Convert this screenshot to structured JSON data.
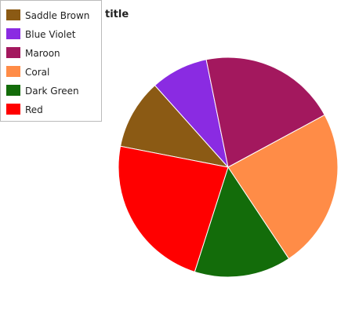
{
  "chart_data": {
    "type": "pie",
    "title": "title",
    "slices": [
      {
        "label": "Saddle Brown",
        "value": 9.9,
        "color": "#8B5A14"
      },
      {
        "label": "Blue Violet",
        "value": 8.1,
        "color": "#8A2BE2"
      },
      {
        "label": "Maroon",
        "value": 19.5,
        "color": "#A3185E"
      },
      {
        "label": "Coral",
        "value": 22.6,
        "color": "#FF8C47"
      },
      {
        "label": "Dark Green",
        "value": 13.7,
        "color": "#136C0A"
      },
      {
        "label": "Red",
        "value": 22.2,
        "color": "#FF0000"
      }
    ],
    "legend_position": "top-left"
  }
}
